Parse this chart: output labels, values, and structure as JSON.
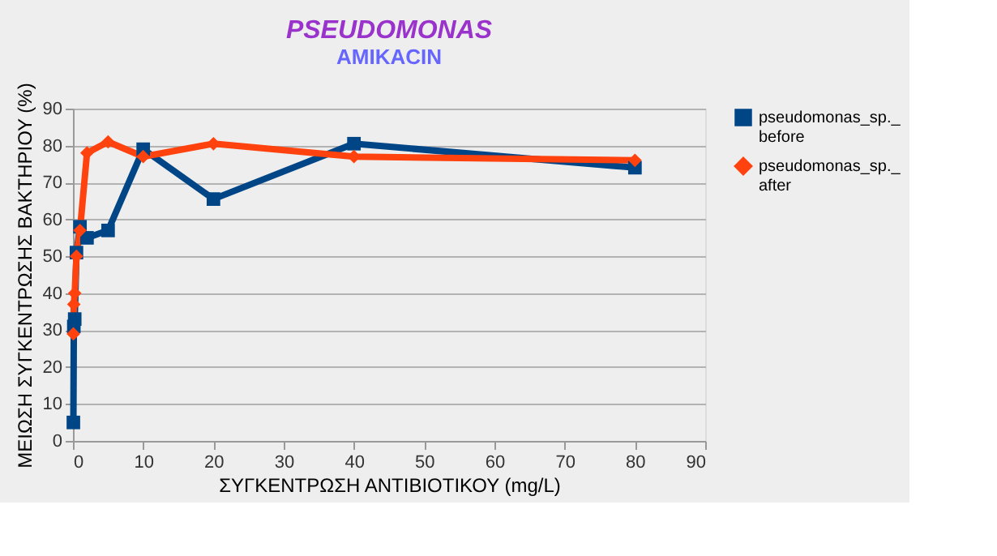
{
  "chart_data": {
    "type": "line",
    "title": "PSEUDOMONAS",
    "subtitle": "AMIKACIN",
    "xlabel": "ΣΥΓΚΕΝΤΡΩΣΗ ΑΝΤΙΒΙΟΤΙΚΟΥ (mg/L)",
    "ylabel": "ΜΕΙΩΣΗ ΣΥΓΚΕΝΤΡΩΣΗΣ ΒΑΚΤΗΡΙΟΥ (%)",
    "x": [
      0.06,
      0.125,
      0.25,
      0.5,
      1,
      2,
      5,
      10,
      20,
      40,
      80
    ],
    "series": [
      {
        "name": "pseudomonas_sp._before",
        "color": "#004586",
        "marker": "square",
        "values": [
          5,
          31,
          33,
          51,
          58,
          55,
          57,
          79,
          65.5,
          80.5,
          74
        ]
      },
      {
        "name": "pseudomonas_sp._after",
        "color": "#ff420e",
        "marker": "diamond",
        "values": [
          29,
          37,
          40,
          50,
          57,
          78,
          81,
          77,
          80.5,
          77,
          76
        ]
      }
    ],
    "xlim": [
      0,
      90
    ],
    "xticks": [
      0,
      10,
      20,
      30,
      40,
      50,
      60,
      70,
      80,
      90
    ],
    "ylim": [
      0,
      90
    ],
    "yticks": [
      0,
      10,
      20,
      30,
      40,
      50,
      60,
      70,
      80,
      90
    ],
    "grid": "y",
    "legend": "right",
    "line_style": "solid"
  }
}
